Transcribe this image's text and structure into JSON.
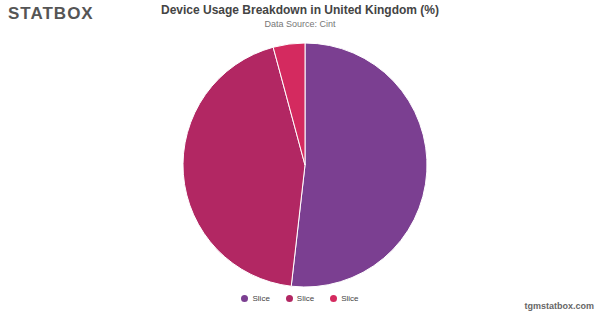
{
  "chart_data": {
    "type": "pie",
    "title": "Device Usage Breakdown in United Kingdom (%)",
    "subtitle": "Data Source: Cint",
    "logo": "STATBOX",
    "watermark": "tgmstatbox.com",
    "categories": [
      "Slice",
      "Slice",
      "Slice"
    ],
    "values": [
      51.8,
      44.0,
      4.2
    ],
    "colors": [
      "#7b3f91",
      "#b22763",
      "#d42a5f"
    ],
    "legend": "bottom"
  }
}
